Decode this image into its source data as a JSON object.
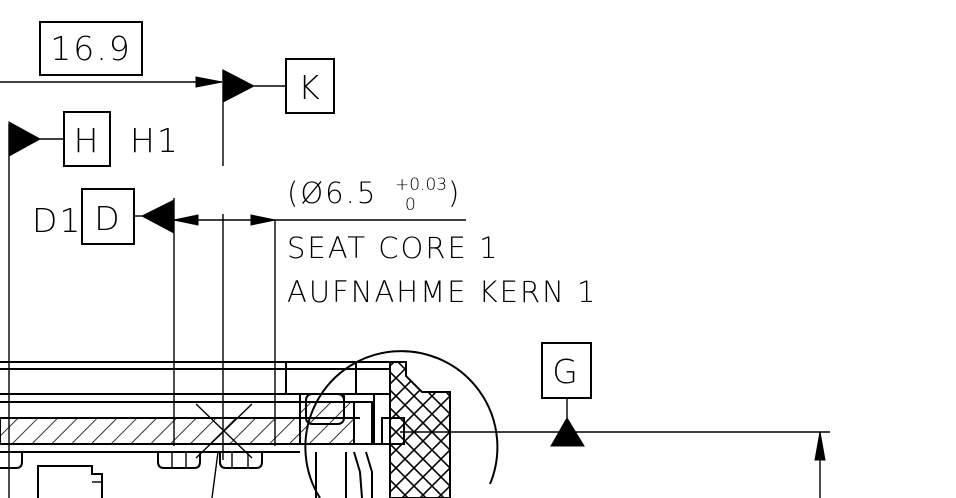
{
  "dimension": {
    "value": "16.9"
  },
  "datums": {
    "k": "K",
    "h": "H",
    "h_note": "H1",
    "d": "D",
    "d_note": "D1",
    "g": "G"
  },
  "callout": {
    "diameter_prefix": "(",
    "diameter_symbol": "Ø",
    "diameter_value": "6.5",
    "tol_upper": "+0.03",
    "tol_lower": "0",
    "diameter_suffix": ")",
    "line1": "SEAT CORE 1",
    "line2": "AUFNAHME KERN 1"
  }
}
